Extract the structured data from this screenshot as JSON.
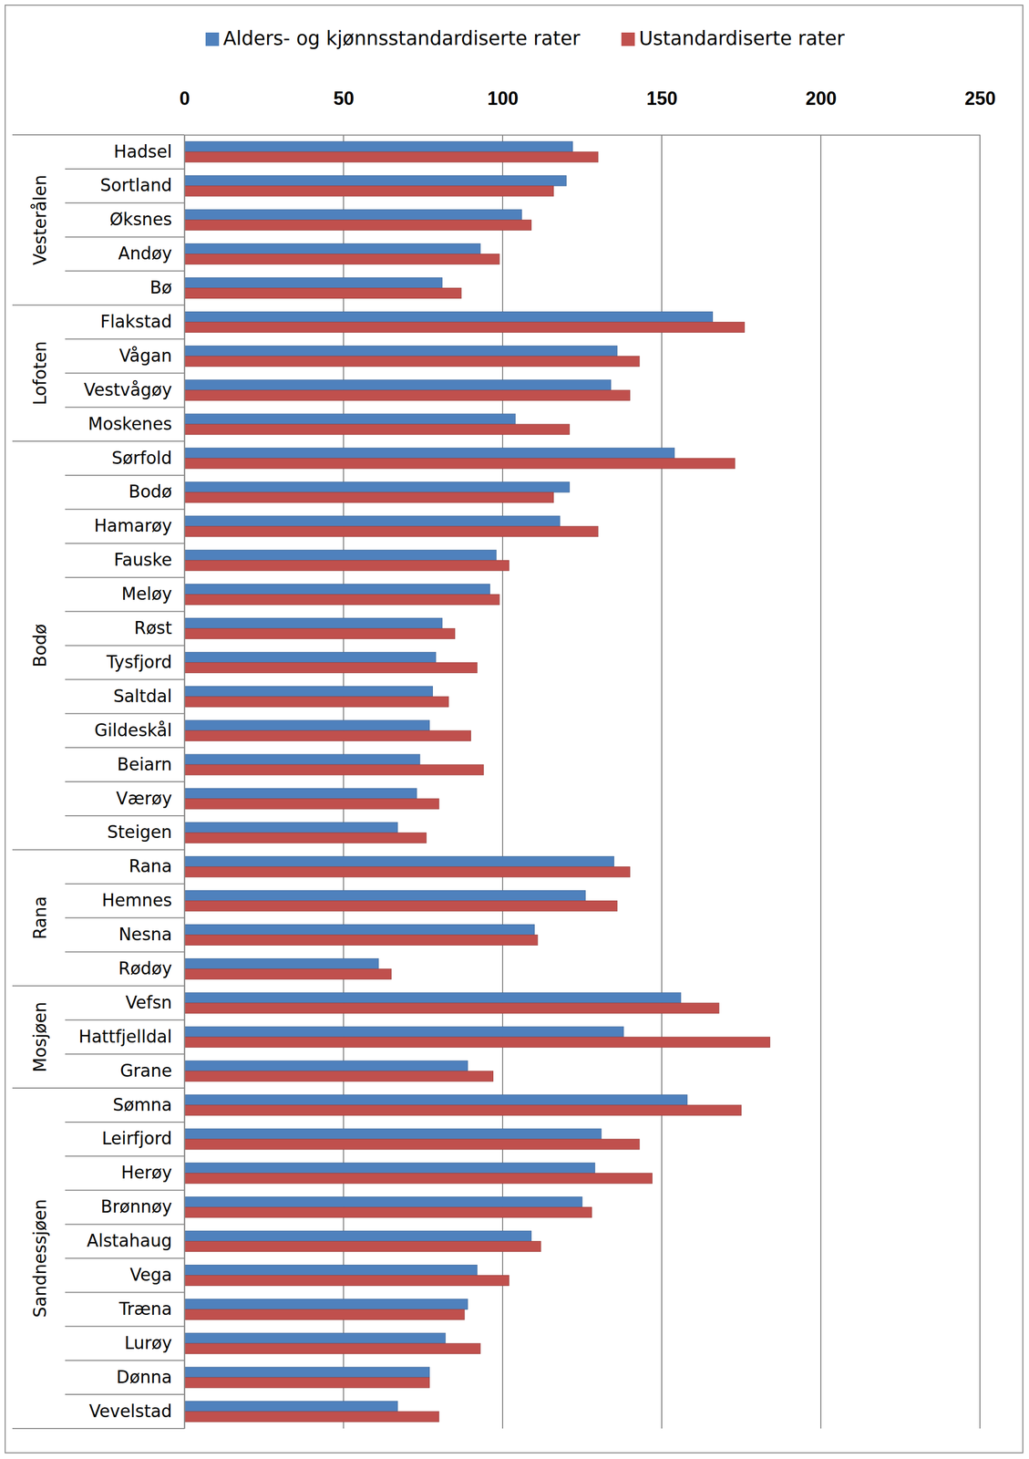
{
  "chart_data": {
    "type": "bar",
    "orientation": "horizontal",
    "categories": [
      "Hadsel",
      "Sortland",
      "Øksnes",
      "Andøy",
      "Bø",
      "Flakstad",
      "Vågan",
      "Vestvågøy",
      "Moskenes",
      "Sørfold",
      "Bodø",
      "Hamarøy",
      "Fauske",
      "Meløy",
      "Røst",
      "Tysfjord",
      "Saltdal",
      "Gildeskål",
      "Beiarn",
      "Værøy",
      "Steigen",
      "Rana",
      "Hemnes",
      "Nesna",
      "Rødøy",
      "Vefsn",
      "Hattfjelldal",
      "Grane",
      "Sømna",
      "Leirfjord",
      "Herøy",
      "Brønnøy",
      "Alstahaug",
      "Vega",
      "Træna",
      "Lurøy",
      "Dønna",
      "Vevelstad"
    ],
    "category_groups": [
      "Vesterålen",
      "Vesterålen",
      "Vesterålen",
      "Vesterålen",
      "Vesterålen",
      "Lofoten",
      "Lofoten",
      "Lofoten",
      "Lofoten",
      "Bodø",
      "Bodø",
      "Bodø",
      "Bodø",
      "Bodø",
      "Bodø",
      "Bodø",
      "Bodø",
      "Bodø",
      "Bodø",
      "Bodø",
      "Bodø",
      "Rana",
      "Rana",
      "Rana",
      "Rana",
      "Mosjøen",
      "Mosjøen",
      "Mosjøen",
      "Sandnessjøen",
      "Sandnessjøen",
      "Sandnessjøen",
      "Sandnessjøen",
      "Sandnessjøen",
      "Sandnessjøen",
      "Sandnessjøen",
      "Sandnessjøen",
      "Sandnessjøen",
      "Sandnessjøen"
    ],
    "series": [
      {
        "name": "Alders- og kjønnsstandardiserte rater",
        "color": "#4F81BD",
        "values": [
          122,
          120,
          106,
          93,
          81,
          166,
          136,
          134,
          104,
          154,
          121,
          118,
          98,
          96,
          81,
          79,
          78,
          77,
          74,
          73,
          67,
          135,
          126,
          110,
          61,
          156,
          138,
          89,
          158,
          131,
          129,
          125,
          109,
          92,
          89,
          82,
          77,
          67
        ]
      },
      {
        "name": "Ustandardiserte rater",
        "color": "#C0504D",
        "values": [
          130,
          116,
          109,
          99,
          87,
          176,
          143,
          140,
          121,
          173,
          116,
          130,
          102,
          99,
          85,
          92,
          83,
          90,
          94,
          80,
          76,
          140,
          136,
          111,
          65,
          168,
          184,
          97,
          175,
          143,
          147,
          128,
          112,
          102,
          88,
          93,
          77,
          80
        ]
      }
    ],
    "xlim": [
      0,
      250
    ],
    "xticks": [
      0,
      50,
      100,
      150,
      200,
      250
    ],
    "grid": true,
    "legend": "top"
  }
}
